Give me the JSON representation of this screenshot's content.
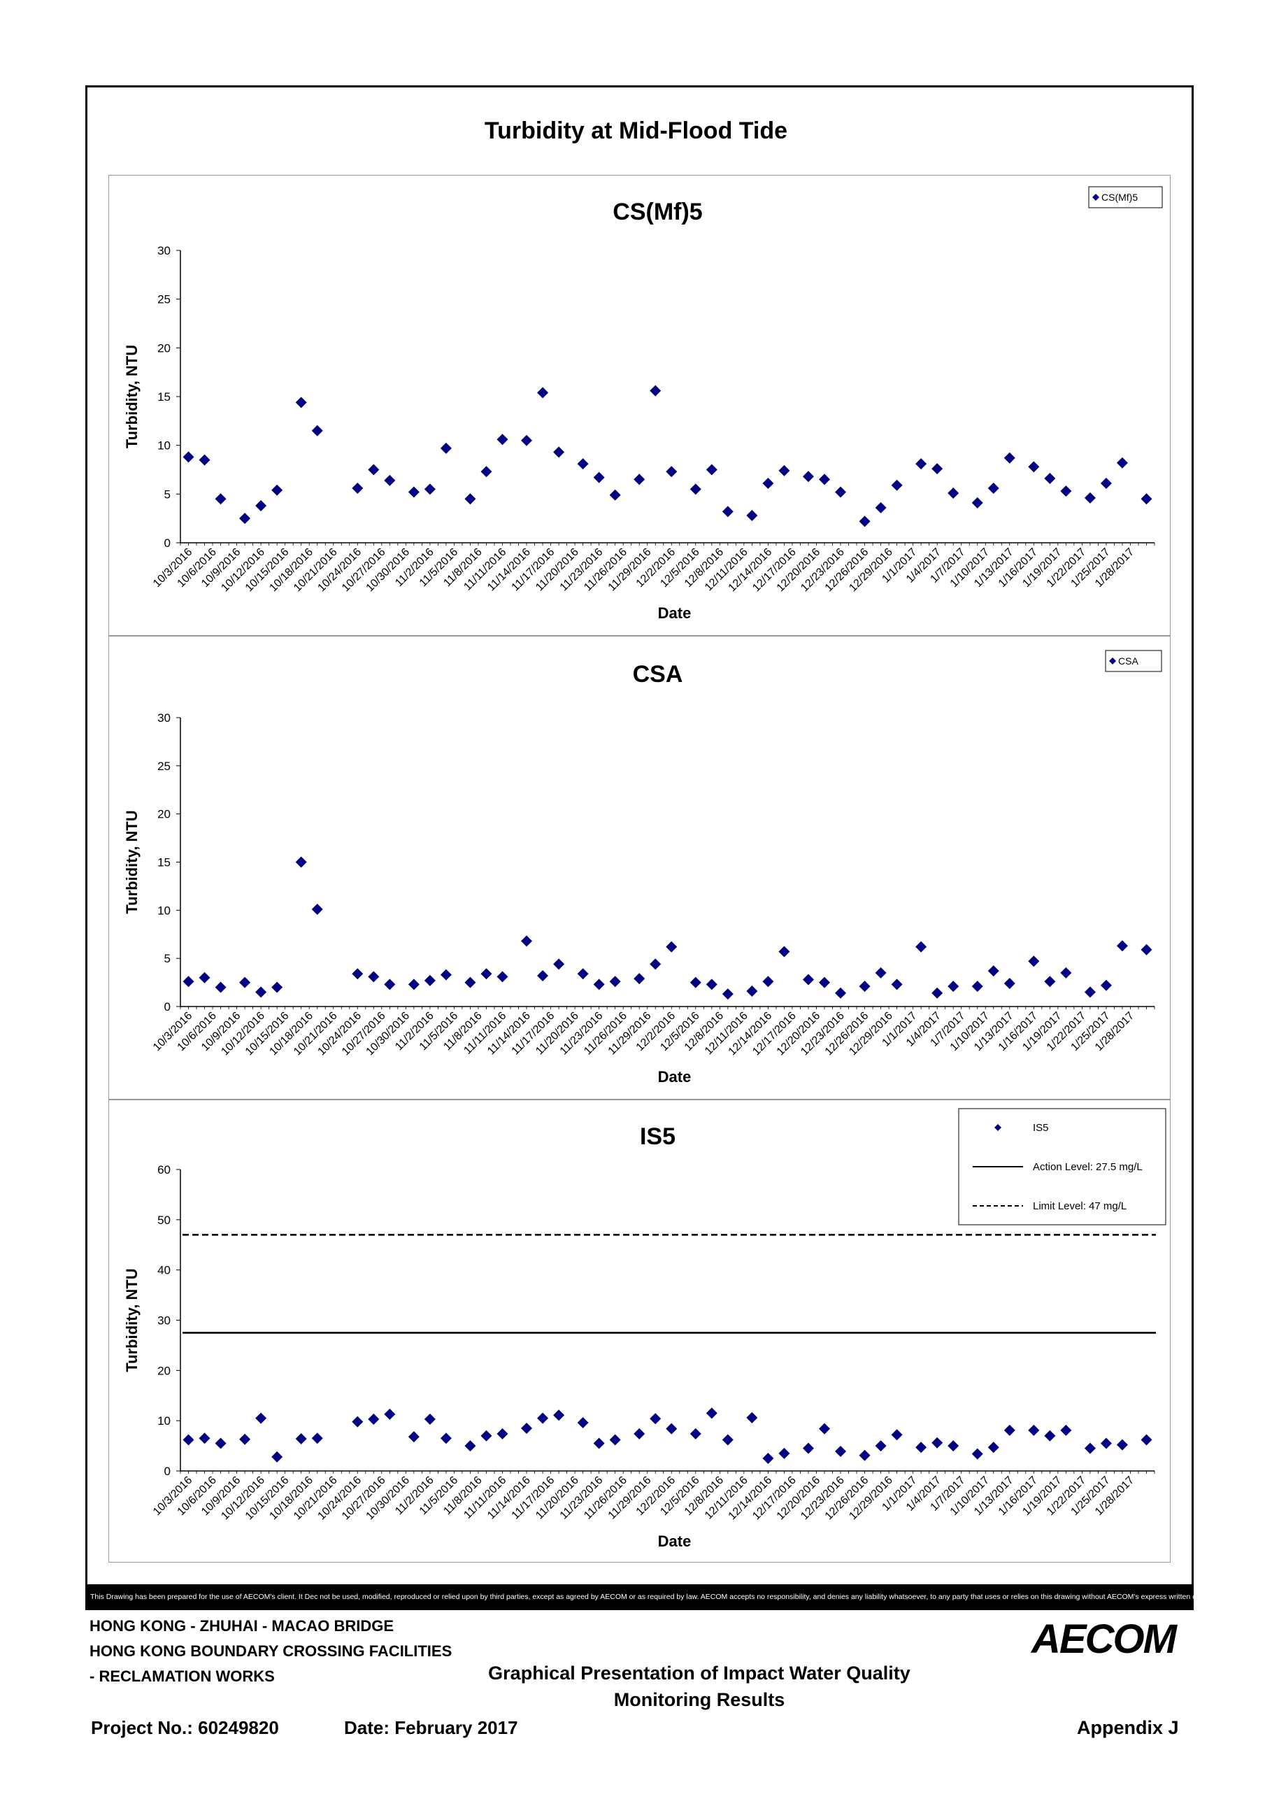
{
  "document": {
    "title": "Turbidity at Mid-Flood Tide",
    "disclaimer": "This Drawing has been prepared for the use of AECOM's client. It Dec not be used, modified, reproduced or relied upon by third parties, except as agreed by AECOM or as required by law. AECOM accepts no responsibility, and denies any liability whatsoever, to any party that uses or relies on this drawing without AECOM's express written consent.",
    "footer": {
      "line1": "HONG KONG - ZHUHAI - MACAO BRIDGE",
      "line2": "HONG KONG BOUNDARY CROSSING FACILITIES",
      "line3": "- RECLAMATION WORKS",
      "center1": "Graphical Presentation of Impact Water Quality",
      "center2": "Monitoring Results",
      "project": "Project No.: 60249820",
      "date": "Date: February 2017",
      "appendix": "Appendix J",
      "logo": "AECOM"
    }
  },
  "chart_data": [
    {
      "type": "scatter",
      "title": "CS(Mf)5",
      "xlabel": "Date",
      "ylabel": "Turbidity, NTU",
      "ylim": [
        0,
        30
      ],
      "yticks": [
        0,
        5,
        10,
        15,
        20,
        25,
        30
      ],
      "xticklabels": [
        "10/3/2016",
        "10/6/2016",
        "10/9/2016",
        "10/12/2016",
        "10/15/2016",
        "10/18/2016",
        "10/21/2016",
        "10/24/2016",
        "10/27/2016",
        "10/30/2016",
        "11/2/2016",
        "11/5/2016",
        "11/8/2016",
        "11/11/2016",
        "11/14/2016",
        "11/17/2016",
        "11/20/2016",
        "11/23/2016",
        "11/26/2016",
        "11/29/2016",
        "12/2/2016",
        "12/5/2016",
        "12/8/2016",
        "12/11/2016",
        "12/14/2016",
        "12/17/2016",
        "12/20/2016",
        "12/23/2016",
        "12/26/2016",
        "12/29/2016",
        "1/1/2017",
        "1/4/2017",
        "1/7/2017",
        "1/10/2017",
        "1/13/2017",
        "1/16/2017",
        "1/19/2017",
        "1/22/2017",
        "1/25/2017",
        "1/28/2017"
      ],
      "legend": "top-right",
      "grid": false,
      "marker_color": "#000080",
      "series": [
        {
          "name": "CS(Mf)5",
          "x": [
            "10/3/2016",
            "10/5/2016",
            "10/7/2016",
            "10/10/2016",
            "10/12/2016",
            "10/14/2016",
            "10/17/2016",
            "10/19/2016",
            "10/24/2016",
            "10/26/2016",
            "10/28/2016",
            "10/31/2016",
            "11/2/2016",
            "11/4/2016",
            "11/7/2016",
            "11/9/2016",
            "11/11/2016",
            "11/14/2016",
            "11/16/2016",
            "11/18/2016",
            "11/21/2016",
            "11/23/2016",
            "11/25/2016",
            "11/28/2016",
            "11/30/2016",
            "12/2/2016",
            "12/5/2016",
            "12/7/2016",
            "12/9/2016",
            "12/12/2016",
            "12/14/2016",
            "12/16/2016",
            "12/19/2016",
            "12/21/2016",
            "12/23/2016",
            "12/26/2016",
            "12/28/2016",
            "12/30/2016",
            "1/2/2017",
            "1/4/2017",
            "1/6/2017",
            "1/9/2017",
            "1/11/2017",
            "1/13/2017",
            "1/16/2017",
            "1/18/2017",
            "1/20/2017",
            "1/23/2017",
            "1/25/2017",
            "1/27/2017",
            "1/30/2017"
          ],
          "values": [
            8.8,
            8.5,
            4.5,
            2.5,
            3.8,
            5.4,
            14.4,
            11.5,
            5.6,
            7.5,
            6.4,
            5.2,
            5.5,
            9.7,
            4.5,
            7.3,
            10.6,
            10.5,
            15.4,
            9.3,
            8.1,
            6.7,
            4.9,
            6.5,
            15.6,
            7.3,
            5.5,
            7.5,
            3.2,
            2.8,
            6.1,
            7.4,
            6.8,
            6.5,
            5.2,
            2.2,
            3.6,
            5.9,
            8.1,
            7.6,
            5.1,
            4.1,
            5.6,
            8.7,
            7.8,
            6.6,
            5.3,
            4.6,
            6.1,
            8.2,
            4.5
          ]
        }
      ]
    },
    {
      "type": "scatter",
      "title": "CSA",
      "xlabel": "Date",
      "ylabel": "Turbidity, NTU",
      "ylim": [
        0,
        30
      ],
      "yticks": [
        0,
        5,
        10,
        15,
        20,
        25,
        30
      ],
      "xticklabels": [
        "10/3/2016",
        "10/6/2016",
        "10/9/2016",
        "10/12/2016",
        "10/15/2016",
        "10/18/2016",
        "10/21/2016",
        "10/24/2016",
        "10/27/2016",
        "10/30/2016",
        "11/2/2016",
        "11/5/2016",
        "11/8/2016",
        "11/11/2016",
        "11/14/2016",
        "11/17/2016",
        "11/20/2016",
        "11/23/2016",
        "11/26/2016",
        "11/29/2016",
        "12/2/2016",
        "12/5/2016",
        "12/8/2016",
        "12/11/2016",
        "12/14/2016",
        "12/17/2016",
        "12/20/2016",
        "12/23/2016",
        "12/26/2016",
        "12/29/2016",
        "1/1/2017",
        "1/4/2017",
        "1/7/2017",
        "1/10/2017",
        "1/13/2017",
        "1/16/2017",
        "1/19/2017",
        "1/22/2017",
        "1/25/2017",
        "1/28/2017"
      ],
      "legend": "top-right",
      "grid": false,
      "marker_color": "#000080",
      "series": [
        {
          "name": "CSA",
          "x": [
            "10/3/2016",
            "10/5/2016",
            "10/7/2016",
            "10/10/2016",
            "10/12/2016",
            "10/14/2016",
            "10/17/2016",
            "10/19/2016",
            "10/24/2016",
            "10/26/2016",
            "10/28/2016",
            "10/31/2016",
            "11/2/2016",
            "11/4/2016",
            "11/7/2016",
            "11/9/2016",
            "11/11/2016",
            "11/14/2016",
            "11/16/2016",
            "11/18/2016",
            "11/21/2016",
            "11/23/2016",
            "11/25/2016",
            "11/28/2016",
            "11/30/2016",
            "12/2/2016",
            "12/5/2016",
            "12/7/2016",
            "12/9/2016",
            "12/12/2016",
            "12/14/2016",
            "12/16/2016",
            "12/19/2016",
            "12/21/2016",
            "12/23/2016",
            "12/26/2016",
            "12/28/2016",
            "12/30/2016",
            "1/2/2017",
            "1/4/2017",
            "1/6/2017",
            "1/9/2017",
            "1/11/2017",
            "1/13/2017",
            "1/16/2017",
            "1/18/2017",
            "1/20/2017",
            "1/23/2017",
            "1/25/2017",
            "1/27/2017",
            "1/30/2017"
          ],
          "values": [
            2.6,
            3.0,
            2.0,
            2.5,
            1.5,
            2.0,
            15.0,
            10.1,
            3.4,
            3.1,
            2.3,
            2.3,
            2.7,
            3.3,
            2.5,
            3.4,
            3.1,
            6.8,
            3.2,
            4.4,
            3.4,
            2.3,
            2.6,
            2.9,
            4.4,
            6.2,
            2.5,
            2.3,
            1.3,
            1.6,
            2.6,
            5.7,
            2.8,
            2.5,
            1.4,
            2.1,
            3.5,
            2.3,
            6.2,
            1.4,
            2.1,
            2.1,
            3.7,
            2.4,
            4.7,
            2.6,
            3.5,
            1.5,
            2.2,
            6.3,
            5.9
          ]
        }
      ]
    },
    {
      "type": "scatter",
      "title": "IS5",
      "xlabel": "Date",
      "ylabel": "Turbidity, NTU",
      "ylim": [
        0,
        60
      ],
      "yticks": [
        0,
        10,
        20,
        30,
        40,
        50,
        60
      ],
      "xticklabels": [
        "10/3/2016",
        "10/6/2016",
        "10/9/2016",
        "10/12/2016",
        "10/15/2016",
        "10/18/2016",
        "10/21/2016",
        "10/24/2016",
        "10/27/2016",
        "10/30/2016",
        "11/2/2016",
        "11/5/2016",
        "11/8/2016",
        "11/11/2016",
        "11/14/2016",
        "11/17/2016",
        "11/20/2016",
        "11/23/2016",
        "11/26/2016",
        "11/29/2016",
        "12/2/2016",
        "12/5/2016",
        "12/8/2016",
        "12/11/2016",
        "12/14/2016",
        "12/17/2016",
        "12/20/2016",
        "12/23/2016",
        "12/26/2016",
        "12/29/2016",
        "1/1/2017",
        "1/4/2017",
        "1/7/2017",
        "1/10/2017",
        "1/13/2017",
        "1/16/2017",
        "1/19/2017",
        "1/22/2017",
        "1/25/2017",
        "1/28/2017"
      ],
      "legend": "top-right",
      "grid": false,
      "marker_color": "#000080",
      "series": [
        {
          "name": "IS5",
          "x": [
            "10/3/2016",
            "10/5/2016",
            "10/7/2016",
            "10/10/2016",
            "10/12/2016",
            "10/14/2016",
            "10/17/2016",
            "10/19/2016",
            "10/24/2016",
            "10/26/2016",
            "10/28/2016",
            "10/31/2016",
            "11/2/2016",
            "11/4/2016",
            "11/7/2016",
            "11/9/2016",
            "11/11/2016",
            "11/14/2016",
            "11/16/2016",
            "11/18/2016",
            "11/21/2016",
            "11/23/2016",
            "11/25/2016",
            "11/28/2016",
            "11/30/2016",
            "12/2/2016",
            "12/5/2016",
            "12/7/2016",
            "12/9/2016",
            "12/12/2016",
            "12/14/2016",
            "12/16/2016",
            "12/19/2016",
            "12/21/2016",
            "12/23/2016",
            "12/26/2016",
            "12/28/2016",
            "12/30/2016",
            "1/2/2017",
            "1/4/2017",
            "1/6/2017",
            "1/9/2017",
            "1/11/2017",
            "1/13/2017",
            "1/16/2017",
            "1/18/2017",
            "1/20/2017",
            "1/23/2017",
            "1/25/2017",
            "1/27/2017",
            "1/30/2017"
          ],
          "values": [
            6.2,
            6.5,
            5.5,
            6.3,
            10.5,
            2.8,
            6.4,
            6.5,
            9.8,
            10.3,
            11.3,
            6.8,
            10.3,
            6.5,
            5.0,
            7.0,
            7.4,
            8.5,
            10.5,
            11.1,
            9.6,
            5.5,
            6.2,
            7.4,
            10.4,
            8.4,
            7.4,
            11.5,
            6.2,
            10.6,
            2.5,
            3.5,
            4.5,
            8.4,
            3.9,
            3.1,
            5.0,
            7.2,
            4.7,
            5.6,
            5.0,
            3.4,
            4.7,
            8.1,
            8.1,
            7.0,
            8.1,
            4.5,
            5.5,
            5.2,
            6.2
          ]
        },
        {
          "name": "Action Level: 27.5 mg/L",
          "type": "line",
          "style": "solid",
          "value": 27.5
        },
        {
          "name": "Limit Level: 47 mg/L",
          "type": "line",
          "style": "dashed",
          "value": 47
        }
      ]
    }
  ]
}
